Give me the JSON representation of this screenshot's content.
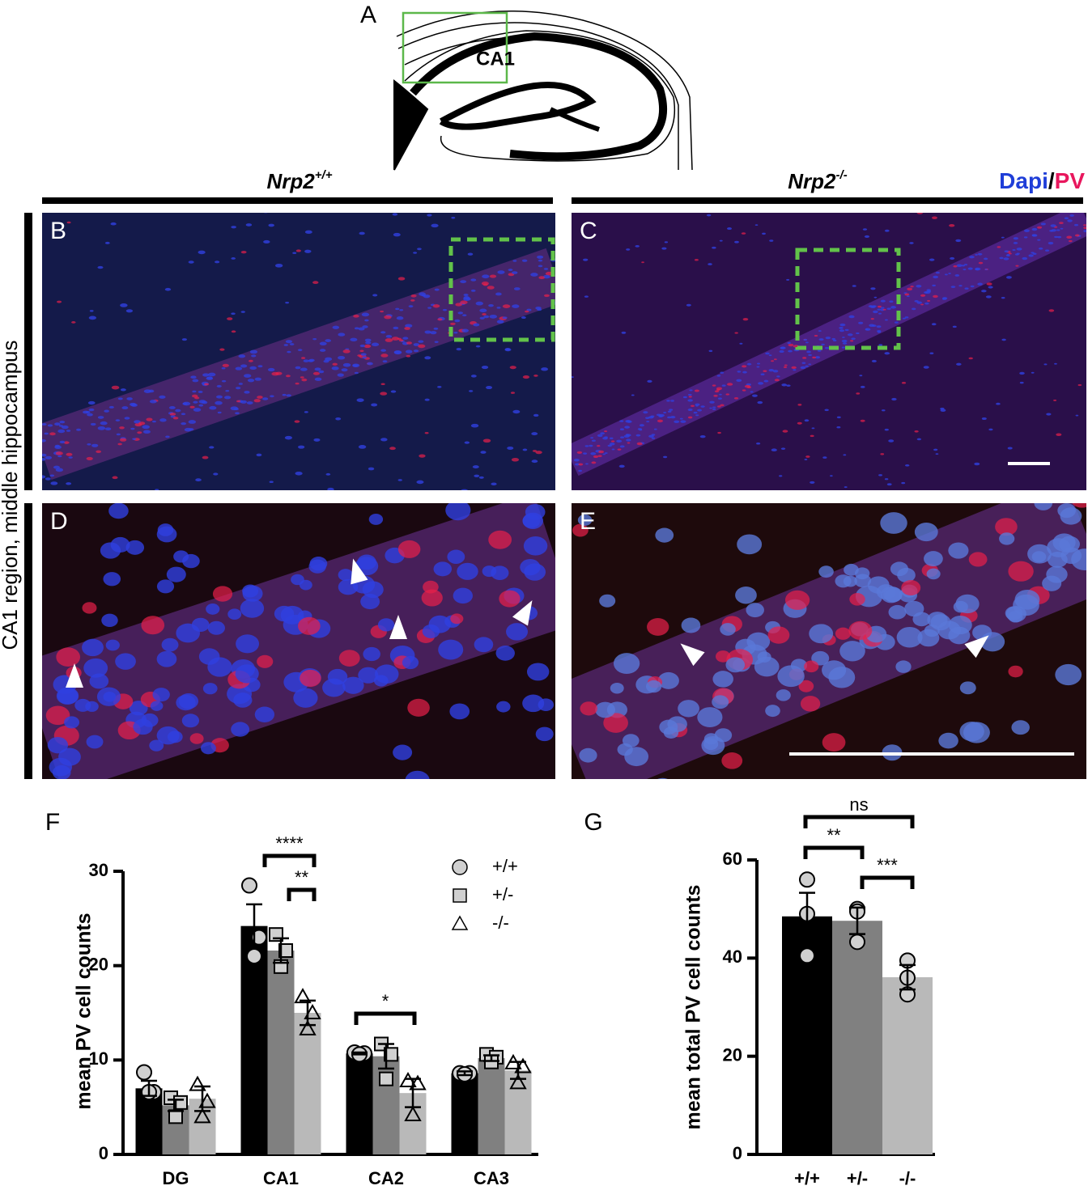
{
  "figure": {
    "panel_a": {
      "label": "A",
      "region": "CA1"
    },
    "headers": [
      {
        "text": "Nrp2",
        "superscript": "+/+"
      },
      {
        "text": "Nrp2",
        "superscript": "-/-"
      }
    ],
    "stain": {
      "first": "Dapi",
      "separator": "/",
      "second": "PV"
    },
    "row_label": "CA1 region, middle hippocampus",
    "panel_labels": [
      "B",
      "C",
      "D",
      "E"
    ]
  },
  "chart_data": [
    {
      "panel": "F",
      "type": "bar",
      "ylabel": "mean PV cell counts",
      "categories": [
        "DG",
        "CA1",
        "CA2",
        "CA3"
      ],
      "series": [
        {
          "name": "+/+",
          "color": "#000000",
          "marker": "circle",
          "values": [
            7.0,
            24.2,
            10.7,
            8.6
          ],
          "errors": [
            0.8,
            2.3,
            0.1,
            0.2
          ],
          "points": [
            [
              8.7,
              6.6,
              6.6
            ],
            [
              28.5,
              23.0,
              21.0
            ],
            [
              10.8,
              10.7,
              10.6
            ],
            [
              8.6,
              8.6,
              8.5
            ]
          ]
        },
        {
          "name": "+/-",
          "color": "#808080",
          "marker": "square",
          "values": [
            5.2,
            21.6,
            10.4,
            10.2
          ],
          "errors": [
            0.6,
            1.3,
            1.3,
            0.3
          ],
          "points": [
            [
              6.0,
              5.5,
              4.0
            ],
            [
              23.3,
              21.6,
              19.9
            ],
            [
              11.7,
              10.6,
              8.0
            ],
            [
              10.6,
              10.3,
              9.8
            ]
          ]
        },
        {
          "name": "-/-",
          "color": "#b9b9b9",
          "marker": "triangle",
          "values": [
            5.9,
            15.0,
            6.5,
            8.9
          ],
          "errors": [
            1.3,
            1.3,
            1.5,
            0.9
          ],
          "points": [
            [
              7.4,
              5.6,
              4.0
            ],
            [
              16.7,
              15.0,
              13.3
            ],
            [
              7.8,
              7.5,
              4.2
            ],
            [
              9.7,
              9.3,
              7.6
            ]
          ]
        }
      ],
      "ylim": [
        0,
        30
      ],
      "yticks": [
        0,
        10,
        20,
        30
      ],
      "legend": "top-right",
      "annotations": [
        "****",
        "**",
        "*"
      ]
    },
    {
      "panel": "G",
      "type": "bar",
      "ylabel": "mean total PV cell counts",
      "categories": [
        "+/+",
        "+/-",
        "-/-"
      ],
      "values": [
        48.5,
        47.6,
        36.1
      ],
      "errors": [
        4.8,
        2.7,
        2.5
      ],
      "points": [
        [
          56.0,
          49.0,
          40.5
        ],
        [
          50.0,
          49.5,
          43.3
        ],
        [
          39.5,
          36.0,
          32.6
        ]
      ],
      "colors": [
        "#000000",
        "#808080",
        "#b9b9b9"
      ],
      "marker": "circle",
      "ylim": [
        0,
        60
      ],
      "yticks": [
        0,
        20,
        40,
        60
      ],
      "annotations": [
        "ns",
        "**",
        "***"
      ]
    }
  ]
}
